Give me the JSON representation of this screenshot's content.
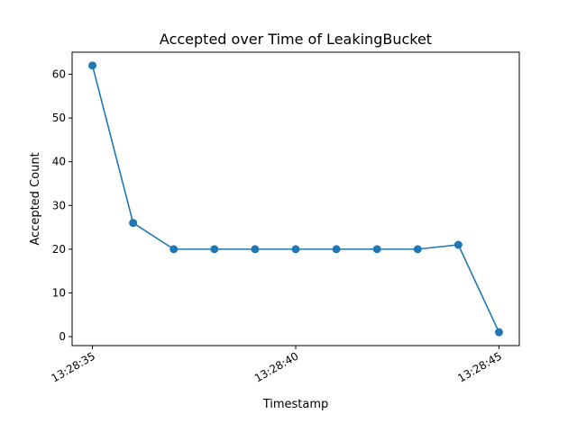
{
  "chart_data": {
    "type": "line",
    "title": "Accepted over Time of LeakingBucket",
    "xlabel": "Timestamp",
    "ylabel": "Accepted Count",
    "x": [
      "13:28:35",
      "13:28:36",
      "13:28:37",
      "13:28:38",
      "13:28:39",
      "13:28:40",
      "13:28:41",
      "13:28:42",
      "13:28:43",
      "13:28:44",
      "13:28:45"
    ],
    "series": [
      {
        "values": [
          62,
          26,
          20,
          20,
          20,
          20,
          20,
          20,
          20,
          21,
          1
        ]
      }
    ],
    "xticks": [
      "13:28:35",
      "13:28:40",
      "13:28:45"
    ],
    "yticks": [
      "0",
      "10",
      "20",
      "30",
      "40",
      "50",
      "60"
    ],
    "ylim": [
      -2.05,
      65.05
    ],
    "grid": false,
    "color": "#1f77b4"
  }
}
